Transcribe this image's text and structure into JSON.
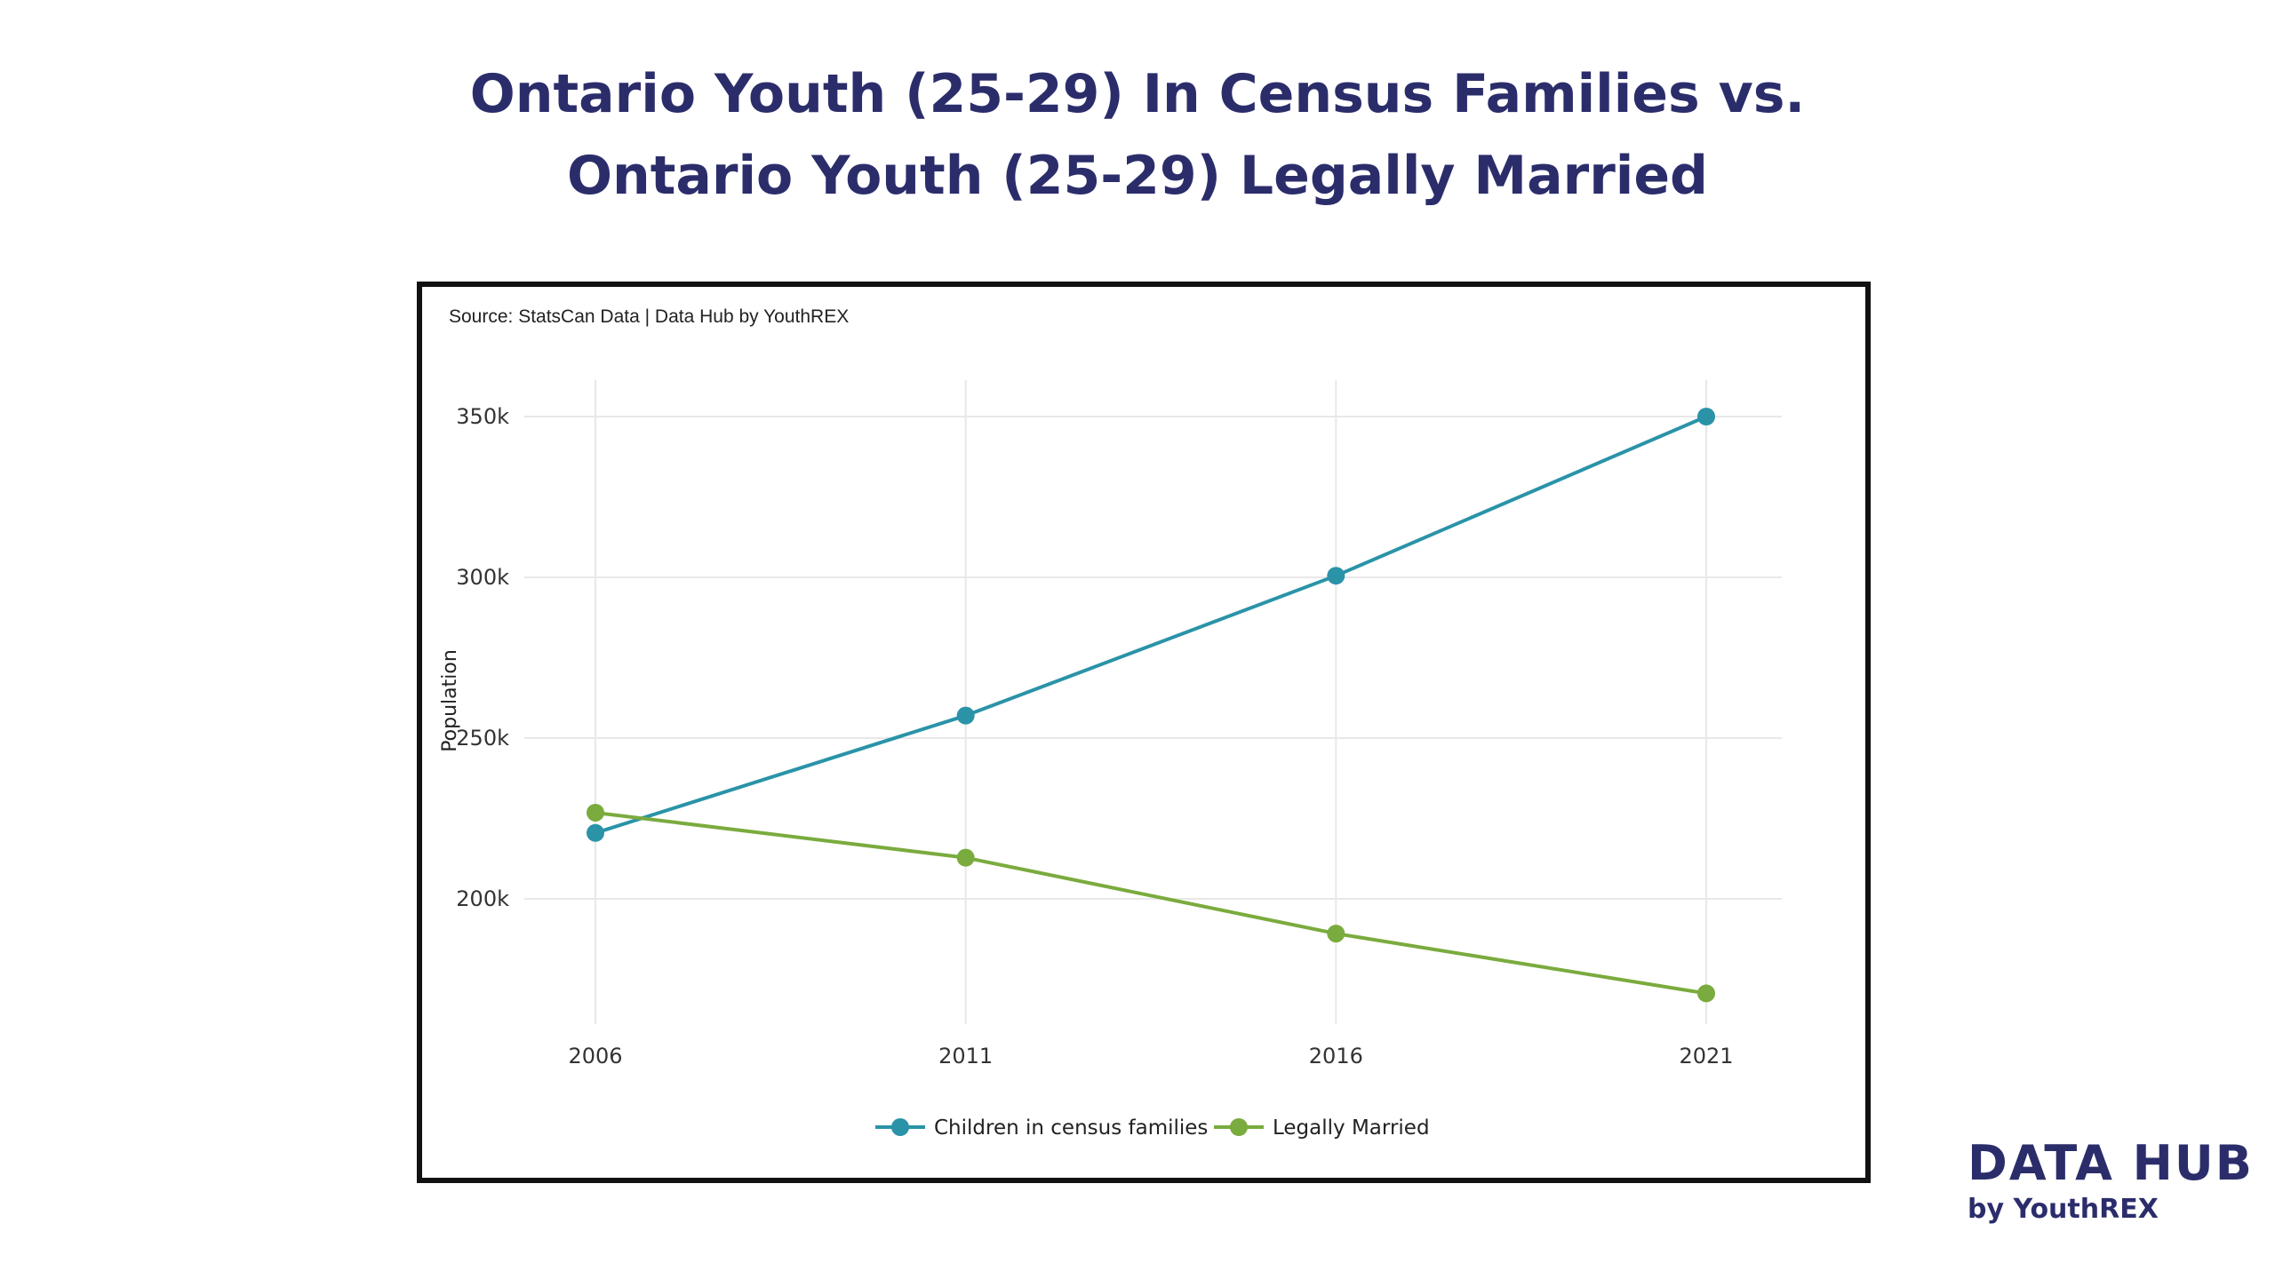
{
  "title_lines": [
    "Ontario Youth (25-29) In Census Families vs.",
    "Ontario Youth (25-29) Legally Married"
  ],
  "source": "Source: StatsCan Data | Data Hub by YouthREX",
  "brand": {
    "name": "DATA HUB",
    "sub": "by YouthREX"
  },
  "colors": {
    "title": "#2b2d6b",
    "series_teal": "#2a93a8",
    "series_green": "#7aab3e"
  },
  "chart_data": {
    "type": "line",
    "title": "Ontario Youth (25-29) In Census Families vs. Ontario Youth (25-29) Legally Married",
    "xlabel": "",
    "ylabel": "Population",
    "x": [
      2006,
      2011,
      2016,
      2021
    ],
    "x_tick_labels": [
      "2006",
      "2011",
      "2016",
      "2021"
    ],
    "y_ticks": [
      200000,
      250000,
      300000,
      350000
    ],
    "y_tick_labels": [
      "200k",
      "250k",
      "300k",
      "350k"
    ],
    "ylim": [
      163000,
      362000
    ],
    "grid": true,
    "legend_position": "bottom",
    "series": [
      {
        "name": "Children in census families",
        "color": "#2a93a8",
        "values": [
          220500,
          257000,
          300500,
          350000
        ]
      },
      {
        "name": "Legally Married",
        "color": "#7aab3e",
        "values": [
          226800,
          212800,
          189200,
          170600
        ]
      }
    ]
  }
}
